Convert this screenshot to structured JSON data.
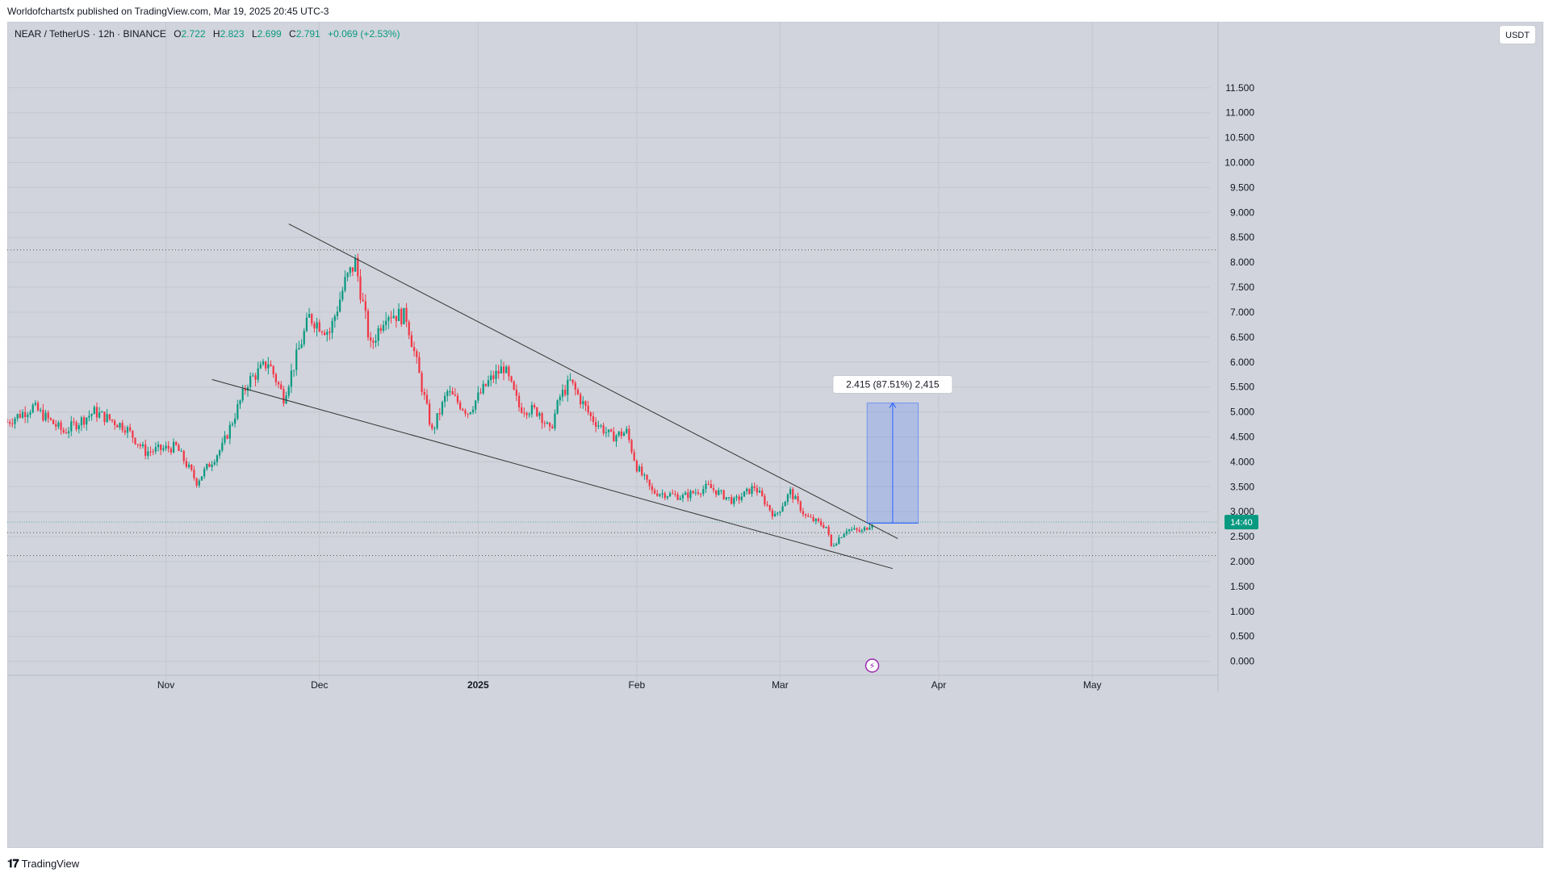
{
  "header": {
    "publisher": "Worldofchartsfx published on TradingView.com, Mar 19, 2025 20:45 UTC-3"
  },
  "symbol": {
    "name": "NEAR / TetherUS · 12h · BINANCE",
    "open_label": "O",
    "open": "2.722",
    "high_label": "H",
    "high": "2.823",
    "low_label": "L",
    "low": "2.699",
    "close_label": "C",
    "close": "2.791",
    "change": "+0.069 (+2.53%)"
  },
  "currency_button": "USDT",
  "price_badge": "14:40",
  "measure_label": "2.415 (87.51%) 2,415",
  "footer": {
    "logo_text": "TradingView"
  },
  "colors": {
    "up": "#089981",
    "down": "#f23645",
    "background": "#d1d4dc",
    "measure": "#2962ff"
  },
  "chart_data": {
    "type": "candlestick",
    "symbol": "NEAR/USDT",
    "timeframe": "12h",
    "ylim": [
      -0.2,
      12.5
    ],
    "y_ticks": [
      "0.000",
      "0.500",
      "1.000",
      "1.500",
      "2.000",
      "2.500",
      "3.000",
      "3.500",
      "4.000",
      "4.500",
      "5.000",
      "5.500",
      "6.000",
      "6.500",
      "7.000",
      "7.500",
      "8.000",
      "8.500",
      "9.000",
      "9.500",
      "10.000",
      "10.500",
      "11.000",
      "11.500"
    ],
    "x_ticks": [
      "Nov",
      "Dec",
      "2025",
      "Feb",
      "Mar",
      "Apr",
      "May"
    ],
    "x_start": "2024-10-01",
    "x_end": "2025-05-24",
    "price_path": [
      {
        "date": "2024-10-01",
        "price": 4.8
      },
      {
        "date": "2024-10-06",
        "price": 5.1
      },
      {
        "date": "2024-10-12",
        "price": 4.6
      },
      {
        "date": "2024-10-18",
        "price": 5.0
      },
      {
        "date": "2024-10-24",
        "price": 4.7
      },
      {
        "date": "2024-10-28",
        "price": 4.2
      },
      {
        "date": "2024-11-03",
        "price": 4.3
      },
      {
        "date": "2024-11-07",
        "price": 3.6
      },
      {
        "date": "2024-11-12",
        "price": 4.3
      },
      {
        "date": "2024-11-17",
        "price": 5.6
      },
      {
        "date": "2024-11-21",
        "price": 6.0
      },
      {
        "date": "2024-11-24",
        "price": 5.3
      },
      {
        "date": "2024-11-29",
        "price": 6.9
      },
      {
        "date": "2024-12-03",
        "price": 6.6
      },
      {
        "date": "2024-12-06",
        "price": 7.6
      },
      {
        "date": "2024-12-08",
        "price": 8.0
      },
      {
        "date": "2024-12-11",
        "price": 6.3
      },
      {
        "date": "2024-12-14",
        "price": 7.0
      },
      {
        "date": "2024-12-18",
        "price": 6.9
      },
      {
        "date": "2024-12-21",
        "price": 5.5
      },
      {
        "date": "2024-12-23",
        "price": 4.6
      },
      {
        "date": "2024-12-26",
        "price": 5.4
      },
      {
        "date": "2024-12-30",
        "price": 5.0
      },
      {
        "date": "2025-01-03",
        "price": 5.6
      },
      {
        "date": "2025-01-06",
        "price": 5.9
      },
      {
        "date": "2025-01-09",
        "price": 5.1
      },
      {
        "date": "2025-01-13",
        "price": 5.0
      },
      {
        "date": "2025-01-15",
        "price": 4.6
      },
      {
        "date": "2025-01-17",
        "price": 5.3
      },
      {
        "date": "2025-01-19",
        "price": 5.6
      },
      {
        "date": "2025-01-23",
        "price": 4.9
      },
      {
        "date": "2025-01-27",
        "price": 4.5
      },
      {
        "date": "2025-01-30",
        "price": 4.6
      },
      {
        "date": "2025-02-01",
        "price": 3.9
      },
      {
        "date": "2025-02-04",
        "price": 3.4
      },
      {
        "date": "2025-02-10",
        "price": 3.3
      },
      {
        "date": "2025-02-15",
        "price": 3.5
      },
      {
        "date": "2025-02-20",
        "price": 3.2
      },
      {
        "date": "2025-02-24",
        "price": 3.5
      },
      {
        "date": "2025-02-28",
        "price": 2.9
      },
      {
        "date": "2025-03-03",
        "price": 3.4
      },
      {
        "date": "2025-03-06",
        "price": 2.9
      },
      {
        "date": "2025-03-10",
        "price": 2.7
      },
      {
        "date": "2025-03-11",
        "price": 2.3
      },
      {
        "date": "2025-03-14",
        "price": 2.65
      },
      {
        "date": "2025-03-17",
        "price": 2.6
      },
      {
        "date": "2025-03-19",
        "price": 2.79
      }
    ],
    "trendlines": [
      {
        "name": "upper",
        "from": {
          "date": "2024-11-25",
          "price": 8.77
        },
        "to": {
          "date": "2025-03-24",
          "price": 2.46
        }
      },
      {
        "name": "lower",
        "from": {
          "date": "2024-11-10",
          "price": 5.65
        },
        "to": {
          "date": "2025-03-23",
          "price": 1.86
        }
      }
    ],
    "horizontal_levels": [
      8.25,
      2.58,
      2.12
    ],
    "measure": {
      "from": "2025-03-18",
      "to": "2025-03-28",
      "low": 2.77,
      "high": 5.18
    },
    "current_price": 2.791
  }
}
